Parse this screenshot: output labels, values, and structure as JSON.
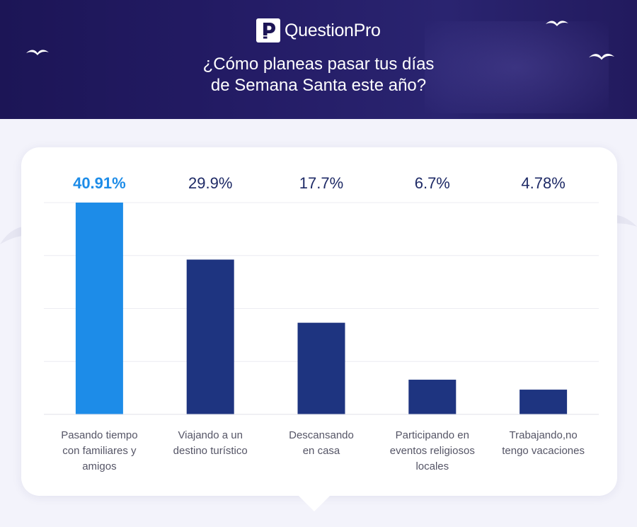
{
  "brand": {
    "name": "QuestionPro"
  },
  "title_lines": [
    "¿Cómo planeas pasar tus días",
    "de Semana Santa este año?"
  ],
  "colors": {
    "header_bg": "#1c1556",
    "bar_highlight": "#1d8ce8",
    "bar_default": "#1e3480",
    "value_highlight": "#1d8ce8",
    "value_default": "#1e2a66",
    "label": "#555566"
  },
  "icons": [
    "questionpro-logo-icon",
    "seagull-icon",
    "seagull-icon",
    "seagull-icon"
  ],
  "chart_data": {
    "type": "bar",
    "title": "¿Cómo planeas pasar tus días de Semana Santa este año?",
    "categories": [
      "Pasando tiempo con familiares y amigos",
      "Viajando a un destino turístico",
      "Descansando en casa",
      "Participando en eventos religiosos locales",
      "Trabajando,no tengo vacaciones"
    ],
    "category_lines": [
      [
        "Pasando tiempo",
        "con familiares y",
        "amigos"
      ],
      [
        "Viajando a un",
        "destino turístico"
      ],
      [
        "Descansando",
        "en casa"
      ],
      [
        "Participando en",
        "eventos religiosos",
        "locales"
      ],
      [
        "Trabajando,no",
        "tengo vacaciones"
      ]
    ],
    "values": [
      40.91,
      29.9,
      17.7,
      6.7,
      4.78
    ],
    "value_labels": [
      "40.91%",
      "29.9%",
      "17.7%",
      "6.7%",
      "4.78%"
    ],
    "highlight_index": 0,
    "ylim": [
      0,
      40.91
    ],
    "grid": true,
    "xlabel": "",
    "ylabel": ""
  }
}
